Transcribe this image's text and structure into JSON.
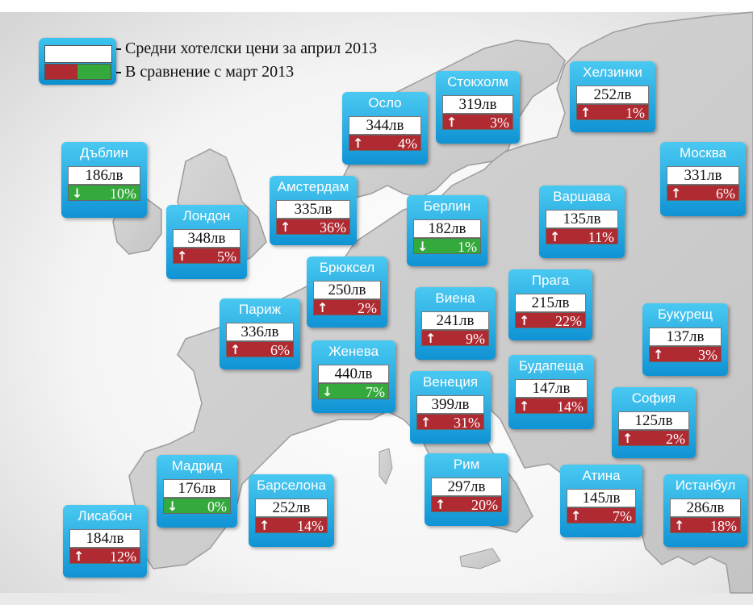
{
  "legend": {
    "line1": "Средни хотелски цени за април 2013",
    "line2": "В сравнение с март 2013"
  },
  "cities": [
    {
      "name": "Дъблин",
      "price": "186лв",
      "change": "10%",
      "dir": "down"
    },
    {
      "name": "Осло",
      "price": "344лв",
      "change": "4%",
      "dir": "up"
    },
    {
      "name": "Стокхолм",
      "price": "319лв",
      "change": "3%",
      "dir": "up"
    },
    {
      "name": "Хелзинки",
      "price": "252лв",
      "change": "1%",
      "dir": "up"
    },
    {
      "name": "Москва",
      "price": "331лв",
      "change": "6%",
      "dir": "up"
    },
    {
      "name": "Лондон",
      "price": "348лв",
      "change": "5%",
      "dir": "up"
    },
    {
      "name": "Амстердам",
      "price": "335лв",
      "change": "36%",
      "dir": "up"
    },
    {
      "name": "Берлин",
      "price": "182лв",
      "change": "1%",
      "dir": "down"
    },
    {
      "name": "Варшава",
      "price": "135лв",
      "change": "11%",
      "dir": "up"
    },
    {
      "name": "Брюксел",
      "price": "250лв",
      "change": "2%",
      "dir": "up"
    },
    {
      "name": "Прага",
      "price": "215лв",
      "change": "22%",
      "dir": "up"
    },
    {
      "name": "Париж",
      "price": "336лв",
      "change": "6%",
      "dir": "up"
    },
    {
      "name": "Виена",
      "price": "241лв",
      "change": "9%",
      "dir": "up"
    },
    {
      "name": "Букурещ",
      "price": "137лв",
      "change": "3%",
      "dir": "up"
    },
    {
      "name": "Женева",
      "price": "440лв",
      "change": "7%",
      "dir": "down"
    },
    {
      "name": "Будапеща",
      "price": "147лв",
      "change": "14%",
      "dir": "up"
    },
    {
      "name": "Венеция",
      "price": "399лв",
      "change": "31%",
      "dir": "up"
    },
    {
      "name": "София",
      "price": "125лв",
      "change": "2%",
      "dir": "up"
    },
    {
      "name": "Мадрид",
      "price": "176лв",
      "change": "0%",
      "dir": "down"
    },
    {
      "name": "Рим",
      "price": "297лв",
      "change": "20%",
      "dir": "up"
    },
    {
      "name": "Барселона",
      "price": "252лв",
      "change": "14%",
      "dir": "up"
    },
    {
      "name": "Атина",
      "price": "145лв",
      "change": "7%",
      "dir": "up"
    },
    {
      "name": "Истанбул",
      "price": "286лв",
      "change": "18%",
      "dir": "up"
    },
    {
      "name": "Лисабон",
      "price": "184лв",
      "change": "12%",
      "dir": "up"
    }
  ],
  "colors": {
    "up": "#b02a32",
    "down": "#34a93c",
    "card": "#1a9bd8"
  },
  "icons": {
    "up": "arrow-up-icon",
    "down": "arrow-down-icon"
  }
}
